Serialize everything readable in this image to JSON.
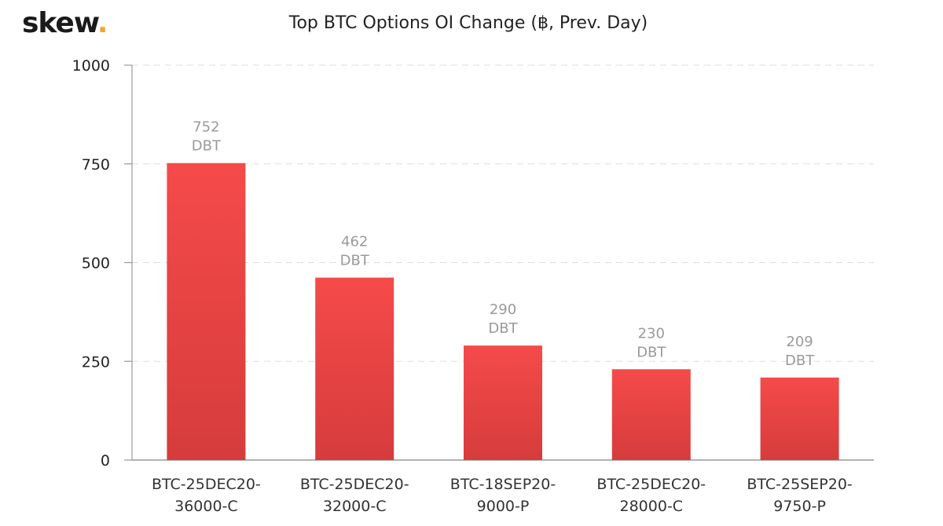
{
  "brand": {
    "name": "skew",
    "dot": "."
  },
  "colors": {
    "bar_top": "#f54a4a",
    "bar_bottom": "#d63c3c",
    "brand_dot": "#f5a623",
    "grid": "#dddddd",
    "axis": "#999999"
  },
  "chart_data": {
    "type": "bar",
    "title": "Top BTC Options OI Change (฿, Prev. Day)",
    "categories": [
      [
        "BTC-25DEC20-",
        "36000-C"
      ],
      [
        "BTC-25DEC20-",
        "32000-C"
      ],
      [
        "BTC-18SEP20-",
        "9000-P"
      ],
      [
        "BTC-25DEC20-",
        "28000-C"
      ],
      [
        "BTC-25SEP20-",
        "9750-P"
      ]
    ],
    "values": [
      752,
      462,
      290,
      230,
      209
    ],
    "data_label_suffix": "DBT",
    "ylim": [
      0,
      1000
    ],
    "yticks": [
      0,
      250,
      500,
      750,
      1000
    ],
    "grid": true,
    "xlabel": "",
    "ylabel": ""
  }
}
